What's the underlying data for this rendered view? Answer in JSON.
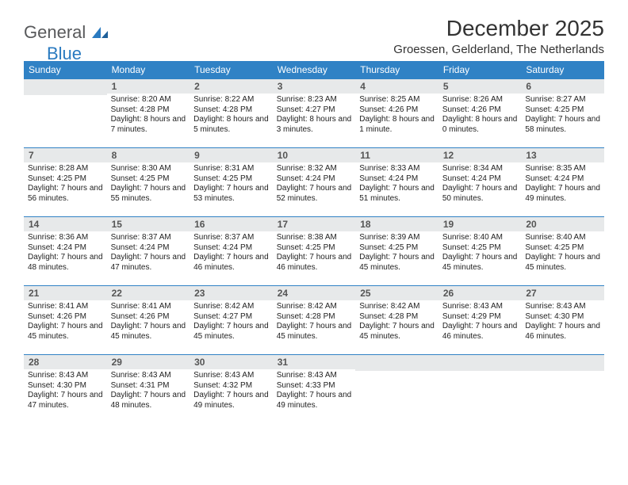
{
  "brand": {
    "general": "General",
    "blue": "Blue"
  },
  "title": "December 2025",
  "location": "Groessen, Gelderland, The Netherlands",
  "headers": [
    "Sunday",
    "Monday",
    "Tuesday",
    "Wednesday",
    "Thursday",
    "Friday",
    "Saturday"
  ],
  "colors": {
    "header_bg": "#3082c5",
    "header_text": "#ffffff",
    "daynum_bg": "#e7e9ea",
    "border": "#3082c5",
    "logo_gray": "#58595b",
    "logo_blue": "#2a7ac0"
  },
  "weeks": [
    [
      {
        "n": "",
        "sr": "",
        "ss": "",
        "dl": ""
      },
      {
        "n": "1",
        "sr": "Sunrise: 8:20 AM",
        "ss": "Sunset: 4:28 PM",
        "dl": "Daylight: 8 hours and 7 minutes."
      },
      {
        "n": "2",
        "sr": "Sunrise: 8:22 AM",
        "ss": "Sunset: 4:28 PM",
        "dl": "Daylight: 8 hours and 5 minutes."
      },
      {
        "n": "3",
        "sr": "Sunrise: 8:23 AM",
        "ss": "Sunset: 4:27 PM",
        "dl": "Daylight: 8 hours and 3 minutes."
      },
      {
        "n": "4",
        "sr": "Sunrise: 8:25 AM",
        "ss": "Sunset: 4:26 PM",
        "dl": "Daylight: 8 hours and 1 minute."
      },
      {
        "n": "5",
        "sr": "Sunrise: 8:26 AM",
        "ss": "Sunset: 4:26 PM",
        "dl": "Daylight: 8 hours and 0 minutes."
      },
      {
        "n": "6",
        "sr": "Sunrise: 8:27 AM",
        "ss": "Sunset: 4:25 PM",
        "dl": "Daylight: 7 hours and 58 minutes."
      }
    ],
    [
      {
        "n": "7",
        "sr": "Sunrise: 8:28 AM",
        "ss": "Sunset: 4:25 PM",
        "dl": "Daylight: 7 hours and 56 minutes."
      },
      {
        "n": "8",
        "sr": "Sunrise: 8:30 AM",
        "ss": "Sunset: 4:25 PM",
        "dl": "Daylight: 7 hours and 55 minutes."
      },
      {
        "n": "9",
        "sr": "Sunrise: 8:31 AM",
        "ss": "Sunset: 4:25 PM",
        "dl": "Daylight: 7 hours and 53 minutes."
      },
      {
        "n": "10",
        "sr": "Sunrise: 8:32 AM",
        "ss": "Sunset: 4:24 PM",
        "dl": "Daylight: 7 hours and 52 minutes."
      },
      {
        "n": "11",
        "sr": "Sunrise: 8:33 AM",
        "ss": "Sunset: 4:24 PM",
        "dl": "Daylight: 7 hours and 51 minutes."
      },
      {
        "n": "12",
        "sr": "Sunrise: 8:34 AM",
        "ss": "Sunset: 4:24 PM",
        "dl": "Daylight: 7 hours and 50 minutes."
      },
      {
        "n": "13",
        "sr": "Sunrise: 8:35 AM",
        "ss": "Sunset: 4:24 PM",
        "dl": "Daylight: 7 hours and 49 minutes."
      }
    ],
    [
      {
        "n": "14",
        "sr": "Sunrise: 8:36 AM",
        "ss": "Sunset: 4:24 PM",
        "dl": "Daylight: 7 hours and 48 minutes."
      },
      {
        "n": "15",
        "sr": "Sunrise: 8:37 AM",
        "ss": "Sunset: 4:24 PM",
        "dl": "Daylight: 7 hours and 47 minutes."
      },
      {
        "n": "16",
        "sr": "Sunrise: 8:37 AM",
        "ss": "Sunset: 4:24 PM",
        "dl": "Daylight: 7 hours and 46 minutes."
      },
      {
        "n": "17",
        "sr": "Sunrise: 8:38 AM",
        "ss": "Sunset: 4:25 PM",
        "dl": "Daylight: 7 hours and 46 minutes."
      },
      {
        "n": "18",
        "sr": "Sunrise: 8:39 AM",
        "ss": "Sunset: 4:25 PM",
        "dl": "Daylight: 7 hours and 45 minutes."
      },
      {
        "n": "19",
        "sr": "Sunrise: 8:40 AM",
        "ss": "Sunset: 4:25 PM",
        "dl": "Daylight: 7 hours and 45 minutes."
      },
      {
        "n": "20",
        "sr": "Sunrise: 8:40 AM",
        "ss": "Sunset: 4:25 PM",
        "dl": "Daylight: 7 hours and 45 minutes."
      }
    ],
    [
      {
        "n": "21",
        "sr": "Sunrise: 8:41 AM",
        "ss": "Sunset: 4:26 PM",
        "dl": "Daylight: 7 hours and 45 minutes."
      },
      {
        "n": "22",
        "sr": "Sunrise: 8:41 AM",
        "ss": "Sunset: 4:26 PM",
        "dl": "Daylight: 7 hours and 45 minutes."
      },
      {
        "n": "23",
        "sr": "Sunrise: 8:42 AM",
        "ss": "Sunset: 4:27 PM",
        "dl": "Daylight: 7 hours and 45 minutes."
      },
      {
        "n": "24",
        "sr": "Sunrise: 8:42 AM",
        "ss": "Sunset: 4:28 PM",
        "dl": "Daylight: 7 hours and 45 minutes."
      },
      {
        "n": "25",
        "sr": "Sunrise: 8:42 AM",
        "ss": "Sunset: 4:28 PM",
        "dl": "Daylight: 7 hours and 45 minutes."
      },
      {
        "n": "26",
        "sr": "Sunrise: 8:43 AM",
        "ss": "Sunset: 4:29 PM",
        "dl": "Daylight: 7 hours and 46 minutes."
      },
      {
        "n": "27",
        "sr": "Sunrise: 8:43 AM",
        "ss": "Sunset: 4:30 PM",
        "dl": "Daylight: 7 hours and 46 minutes."
      }
    ],
    [
      {
        "n": "28",
        "sr": "Sunrise: 8:43 AM",
        "ss": "Sunset: 4:30 PM",
        "dl": "Daylight: 7 hours and 47 minutes."
      },
      {
        "n": "29",
        "sr": "Sunrise: 8:43 AM",
        "ss": "Sunset: 4:31 PM",
        "dl": "Daylight: 7 hours and 48 minutes."
      },
      {
        "n": "30",
        "sr": "Sunrise: 8:43 AM",
        "ss": "Sunset: 4:32 PM",
        "dl": "Daylight: 7 hours and 49 minutes."
      },
      {
        "n": "31",
        "sr": "Sunrise: 8:43 AM",
        "ss": "Sunset: 4:33 PM",
        "dl": "Daylight: 7 hours and 49 minutes."
      },
      {
        "n": "",
        "sr": "",
        "ss": "",
        "dl": ""
      },
      {
        "n": "",
        "sr": "",
        "ss": "",
        "dl": ""
      },
      {
        "n": "",
        "sr": "",
        "ss": "",
        "dl": ""
      }
    ]
  ]
}
